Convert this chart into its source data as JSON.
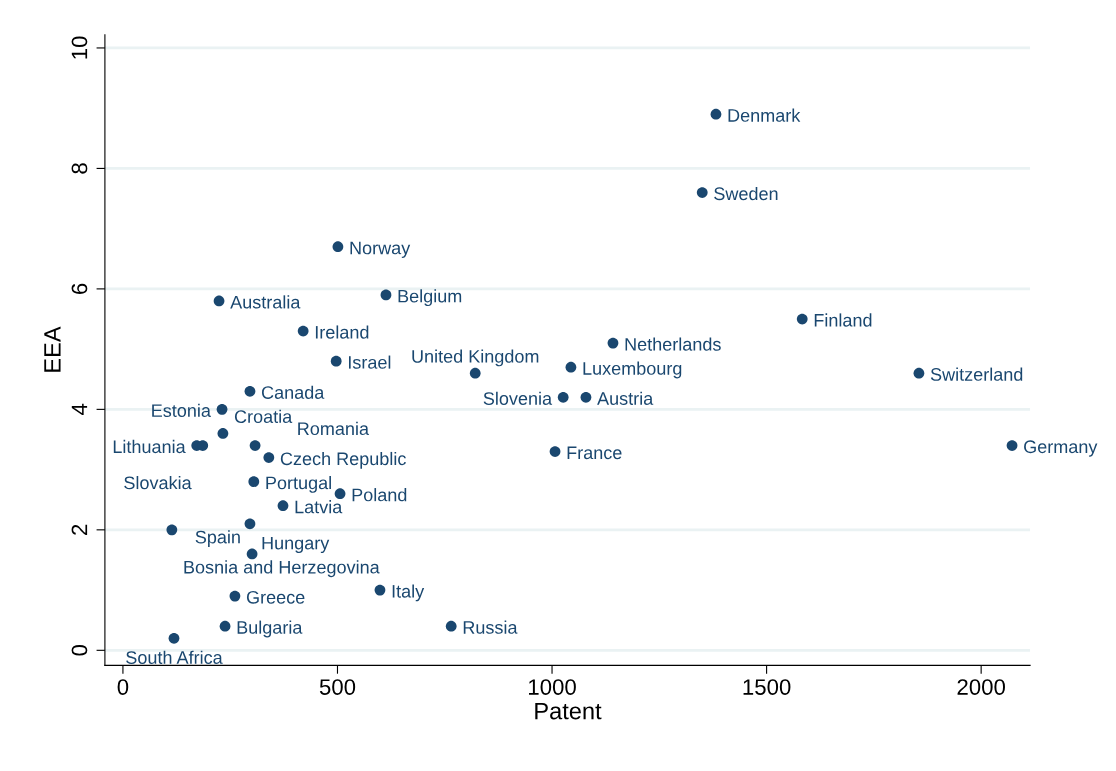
{
  "chart_data": {
    "type": "scatter",
    "xlabel": "Patent",
    "ylabel": "EEA",
    "xlim": [
      -42,
      2114
    ],
    "ylim": [
      -0.25,
      10.22
    ],
    "xticks": [
      0,
      500,
      1000,
      1500,
      2000
    ],
    "yticks": [
      0,
      2,
      4,
      6,
      8,
      10
    ],
    "grid": "y",
    "legend": false,
    "marker": "circle",
    "series": [
      {
        "color": "#1a476f",
        "x": [
          1382,
          1350,
          501,
          613,
          224,
          1583,
          420,
          1142,
          497,
          1044,
          821,
          1855,
          296,
          1026,
          1079,
          231,
          233,
          172,
          186,
          308,
          340,
          1007,
          2072,
          305,
          506,
          373,
          296,
          114,
          301,
          599,
          261,
          765,
          238,
          119
        ],
        "values": [
          8.9,
          7.6,
          6.7,
          5.9,
          5.8,
          5.5,
          5.3,
          5.1,
          4.8,
          4.7,
          4.6,
          4.6,
          4.3,
          4.2,
          4.2,
          4.0,
          3.6,
          3.4,
          3.4,
          3.4,
          3.2,
          3.3,
          3.4,
          2.8,
          2.6,
          2.4,
          2.1,
          2.0,
          1.6,
          1.0,
          0.9,
          0.4,
          0.4,
          0.2
        ]
      }
    ],
    "annotations": [
      {
        "text": "Denmark",
        "x": 1382,
        "y": 8.9
      },
      {
        "text": "Sweden",
        "x": 1350,
        "y": 7.6
      },
      {
        "text": "Norway",
        "x": 501,
        "y": 6.7
      },
      {
        "text": "Belgium",
        "x": 613,
        "y": 5.9
      },
      {
        "text": "Australia",
        "x": 224,
        "y": 5.8
      },
      {
        "text": "Finland",
        "x": 1583,
        "y": 5.5
      },
      {
        "text": "Ireland",
        "x": 420,
        "y": 5.3
      },
      {
        "text": "Netherlands",
        "x": 1142,
        "y": 5.1
      },
      {
        "text": "Israel",
        "x": 497,
        "y": 4.8
      },
      {
        "text": "Luxembourg",
        "x": 1044,
        "y": 4.7
      },
      {
        "text": "United Kingdom",
        "x": 821,
        "y": 4.6
      },
      {
        "text": "Switzerland",
        "x": 1855,
        "y": 4.6
      },
      {
        "text": "Canada",
        "x": 296,
        "y": 4.3
      },
      {
        "text": "Slovenia",
        "x": 1026,
        "y": 4.2
      },
      {
        "text": "Austria",
        "x": 1079,
        "y": 4.2
      },
      {
        "text": "Estonia",
        "x": 231,
        "y": 4.0
      },
      {
        "text": "Croatia",
        "x": 233,
        "y": 3.6
      },
      {
        "text": "Lithuania",
        "x": 172,
        "y": 3.4
      },
      {
        "text": "Slovakia",
        "x": 186,
        "y": 3.4
      },
      {
        "text": "Romania",
        "x": 308,
        "y": 3.4
      },
      {
        "text": "Czech Republic",
        "x": 340,
        "y": 3.2
      },
      {
        "text": "France",
        "x": 1007,
        "y": 3.3
      },
      {
        "text": "Germany",
        "x": 2072,
        "y": 3.4
      },
      {
        "text": "Portugal",
        "x": 305,
        "y": 2.8
      },
      {
        "text": "Poland",
        "x": 506,
        "y": 2.6
      },
      {
        "text": "Latvia",
        "x": 373,
        "y": 2.4
      },
      {
        "text": "Hungary",
        "x": 296,
        "y": 2.1
      },
      {
        "text": "Bosnia and Herzegovina",
        "x": 114,
        "y": 2.0
      },
      {
        "text": "Spain",
        "x": 301,
        "y": 1.6
      },
      {
        "text": "Italy",
        "x": 599,
        "y": 1.0
      },
      {
        "text": "Greece",
        "x": 261,
        "y": 0.9
      },
      {
        "text": "Russia",
        "x": 765,
        "y": 0.4
      },
      {
        "text": "Bulgaria",
        "x": 238,
        "y": 0.4
      },
      {
        "text": "South Africa",
        "x": 119,
        "y": 0.2
      }
    ]
  }
}
